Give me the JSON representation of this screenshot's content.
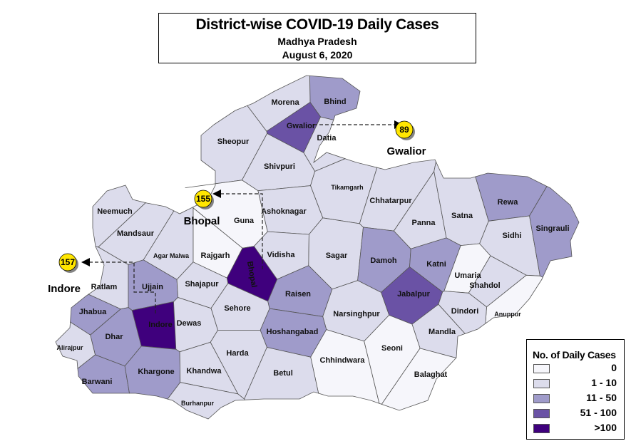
{
  "title": {
    "main": "District-wise COVID-19 Daily Cases",
    "region": "Madhya Pradesh",
    "date": "August 6, 2020"
  },
  "legend": {
    "title": "No. of Daily Cases",
    "classes": [
      {
        "label": "0",
        "color": "#f6f6fb"
      },
      {
        "label": "1 - 10",
        "color": "#dcdcec"
      },
      {
        "label": "11 - 50",
        "color": "#9f9bca"
      },
      {
        "label": "51 - 100",
        "color": "#6a52a5"
      },
      {
        "label": ">100",
        "color": "#3f007d"
      }
    ]
  },
  "callouts": [
    {
      "city": "Gwalior",
      "cases": "89"
    },
    {
      "city": "Bhopal",
      "cases": "155"
    },
    {
      "city": "Indore",
      "cases": "157"
    }
  ],
  "callout_color": "#ffe600",
  "districts": [
    {
      "name": "Morena",
      "class": 1
    },
    {
      "name": "Bhind",
      "class": 2
    },
    {
      "name": "Gwalior",
      "class": 3
    },
    {
      "name": "Datia",
      "class": 1
    },
    {
      "name": "Sheopur",
      "class": 1
    },
    {
      "name": "Shivpuri",
      "class": 1
    },
    {
      "name": "Tikamgarh",
      "class": 1
    },
    {
      "name": "Chhatarpur",
      "class": 1
    },
    {
      "name": "Guna",
      "class": 0
    },
    {
      "name": "Ashoknagar",
      "class": 1
    },
    {
      "name": "Neemuch",
      "class": 1
    },
    {
      "name": "Mandsaur",
      "class": 1
    },
    {
      "name": "Agar Malwa",
      "class": 1
    },
    {
      "name": "Rajgarh",
      "class": 0
    },
    {
      "name": "Bhopal",
      "class": 4
    },
    {
      "name": "Vidisha",
      "class": 1
    },
    {
      "name": "Sagar",
      "class": 1
    },
    {
      "name": "Damoh",
      "class": 2
    },
    {
      "name": "Panna",
      "class": 1
    },
    {
      "name": "Satna",
      "class": 1
    },
    {
      "name": "Rewa",
      "class": 2
    },
    {
      "name": "Sidhi",
      "class": 1
    },
    {
      "name": "Singrauli",
      "class": 2
    },
    {
      "name": "Katni",
      "class": 2
    },
    {
      "name": "Umaria",
      "class": 0
    },
    {
      "name": "Shahdol",
      "class": 1
    },
    {
      "name": "Anuppur",
      "class": 0
    },
    {
      "name": "Jabalpur",
      "class": 3
    },
    {
      "name": "Dindori",
      "class": 1
    },
    {
      "name": "Mandla",
      "class": 1
    },
    {
      "name": "Ratlam",
      "class": 1
    },
    {
      "name": "Ujjain",
      "class": 2
    },
    {
      "name": "Shajapur",
      "class": 1
    },
    {
      "name": "Sehore",
      "class": 1
    },
    {
      "name": "Raisen",
      "class": 2
    },
    {
      "name": "Narsinghpur",
      "class": 1
    },
    {
      "name": "Jhabua",
      "class": 2
    },
    {
      "name": "Dhar",
      "class": 2
    },
    {
      "name": "Indore",
      "class": 4
    },
    {
      "name": "Dewas",
      "class": 1
    },
    {
      "name": "Alirajpur",
      "class": 1
    },
    {
      "name": "Hoshangabad",
      "class": 2
    },
    {
      "name": "Harda",
      "class": 1
    },
    {
      "name": "Chhindwara",
      "class": 0
    },
    {
      "name": "Seoni",
      "class": 0
    },
    {
      "name": "Balaghat",
      "class": 0
    },
    {
      "name": "Barwani",
      "class": 2
    },
    {
      "name": "Khargone",
      "class": 2
    },
    {
      "name": "Khandwa",
      "class": 1
    },
    {
      "name": "Betul",
      "class": 1
    },
    {
      "name": "Burhanpur",
      "class": 1
    }
  ]
}
